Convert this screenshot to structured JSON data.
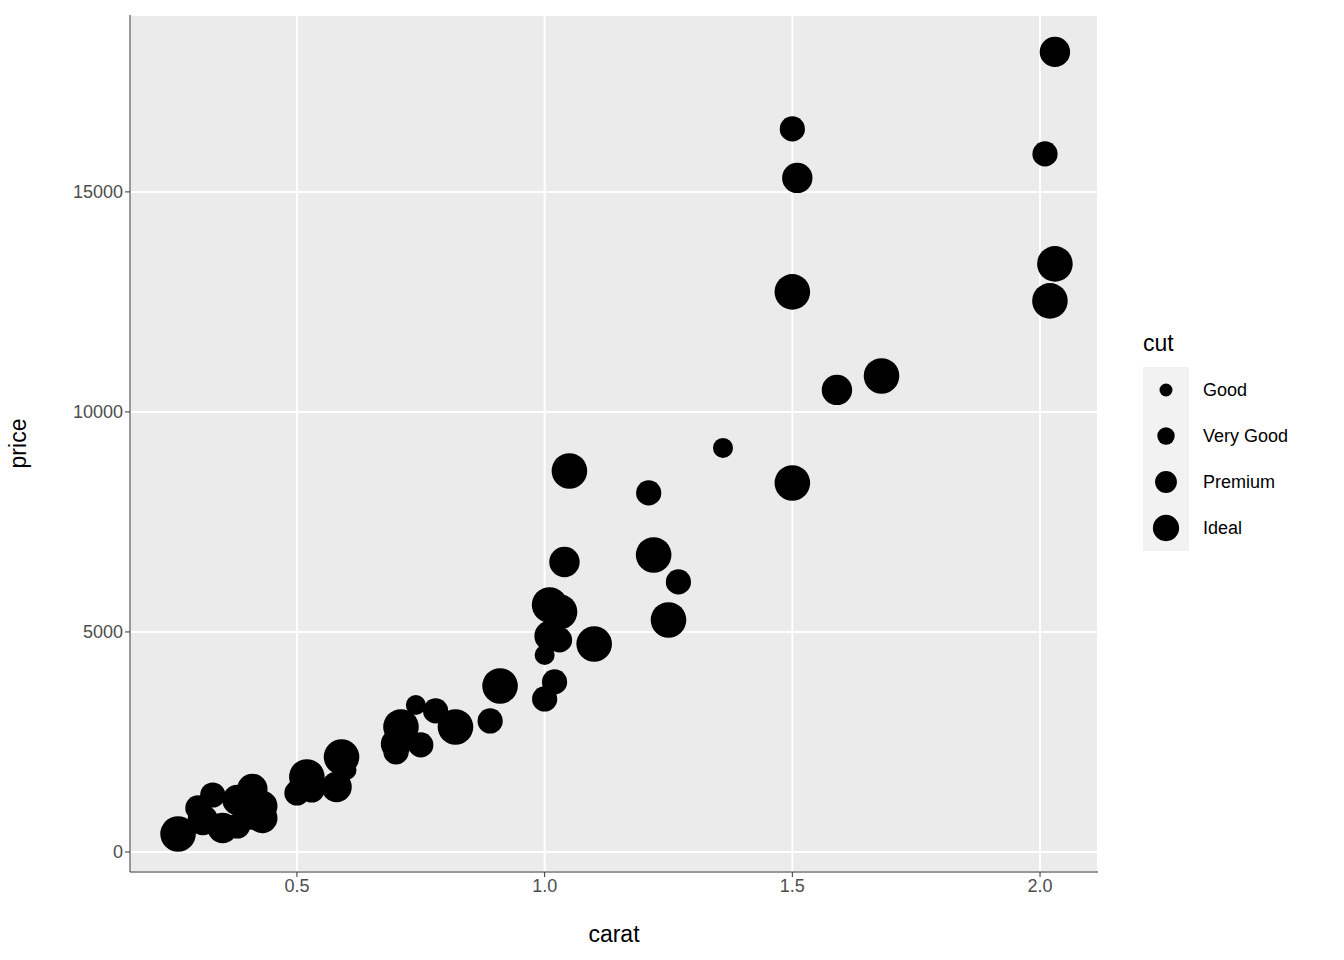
{
  "chart_data": {
    "type": "scatter",
    "x_label": "carat",
    "y_label": "price",
    "legend_title": "cut",
    "legend": "right",
    "grid": true,
    "xlim": [
      0.163,
      2.117
    ],
    "xticks": [
      0.5,
      {
        "value": 1,
        "label": "1.0"
      },
      1.5,
      {
        "value": 2,
        "label": "2.0"
      }
    ],
    "ylim": [
      -455,
      19020
    ],
    "yticks": [
      0,
      5000,
      10000,
      15000
    ],
    "series": [
      {
        "name": "Good",
        "color": "#000000",
        "x": [
          1.36,
          1.0,
          0.74,
          0.6,
          0.25
        ],
        "values": [
          9182,
          4477,
          3341,
          1864,
          545
        ]
      },
      {
        "name": "Very Good",
        "color": "#000000",
        "x": [
          2.01,
          1.5,
          1.21,
          1.27,
          1.03,
          1.02,
          1.0,
          0.89,
          0.78,
          0.75,
          0.7,
          0.5,
          0.33,
          0.3,
          0.38,
          0.53
        ],
        "values": [
          15864,
          16432,
          8159,
          6136,
          4818,
          3864,
          3477,
          2977,
          3205,
          2432,
          2273,
          1341,
          1295,
          1000,
          591,
          1409
        ]
      },
      {
        "name": "Premium",
        "color": "#000000",
        "x": [
          2.03,
          1.51,
          1.59,
          1.04,
          1.01,
          0.7,
          0.58,
          0.43,
          0.43,
          0.41,
          0.38,
          0.35,
          0.31
        ],
        "values": [
          18182,
          15318,
          10500,
          6591,
          4909,
          2455,
          1477,
          1045,
          773,
          1432,
          1182,
          545,
          727
        ]
      },
      {
        "name": "Ideal",
        "color": "#000000",
        "x": [
          2.03,
          2.02,
          1.5,
          1.68,
          1.5,
          1.05,
          1.22,
          1.25,
          1.01,
          1.03,
          1.1,
          0.91,
          0.82,
          0.71,
          0.59,
          0.52,
          0.26,
          0.41
        ],
        "values": [
          13364,
          12523,
          12727,
          10818,
          8386,
          8659,
          6750,
          5273,
          5614,
          5455,
          4727,
          3773,
          2841,
          2841,
          2159,
          1705,
          409,
          909
        ]
      }
    ]
  }
}
